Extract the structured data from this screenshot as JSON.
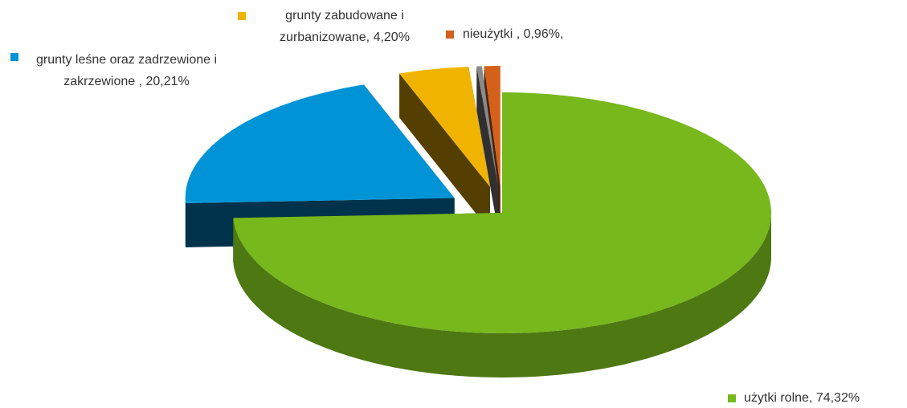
{
  "chart_data": {
    "type": "pie",
    "value_labels": [
      "użytki rolne, 74,32%",
      "grunty leśne oraz zadrzewione i zakrzewione , 20,21%",
      "grunty zabudowane i zurbanizowane, 4,20%",
      null,
      "nieużytki , 0,96%,"
    ],
    "values": [
      74.32,
      20.21,
      4.2,
      0.31,
      0.96
    ],
    "colors": [
      "#77b81c",
      "#0093d6",
      "#f0b400",
      "#8a8a8a",
      "#d4601a"
    ]
  }
}
